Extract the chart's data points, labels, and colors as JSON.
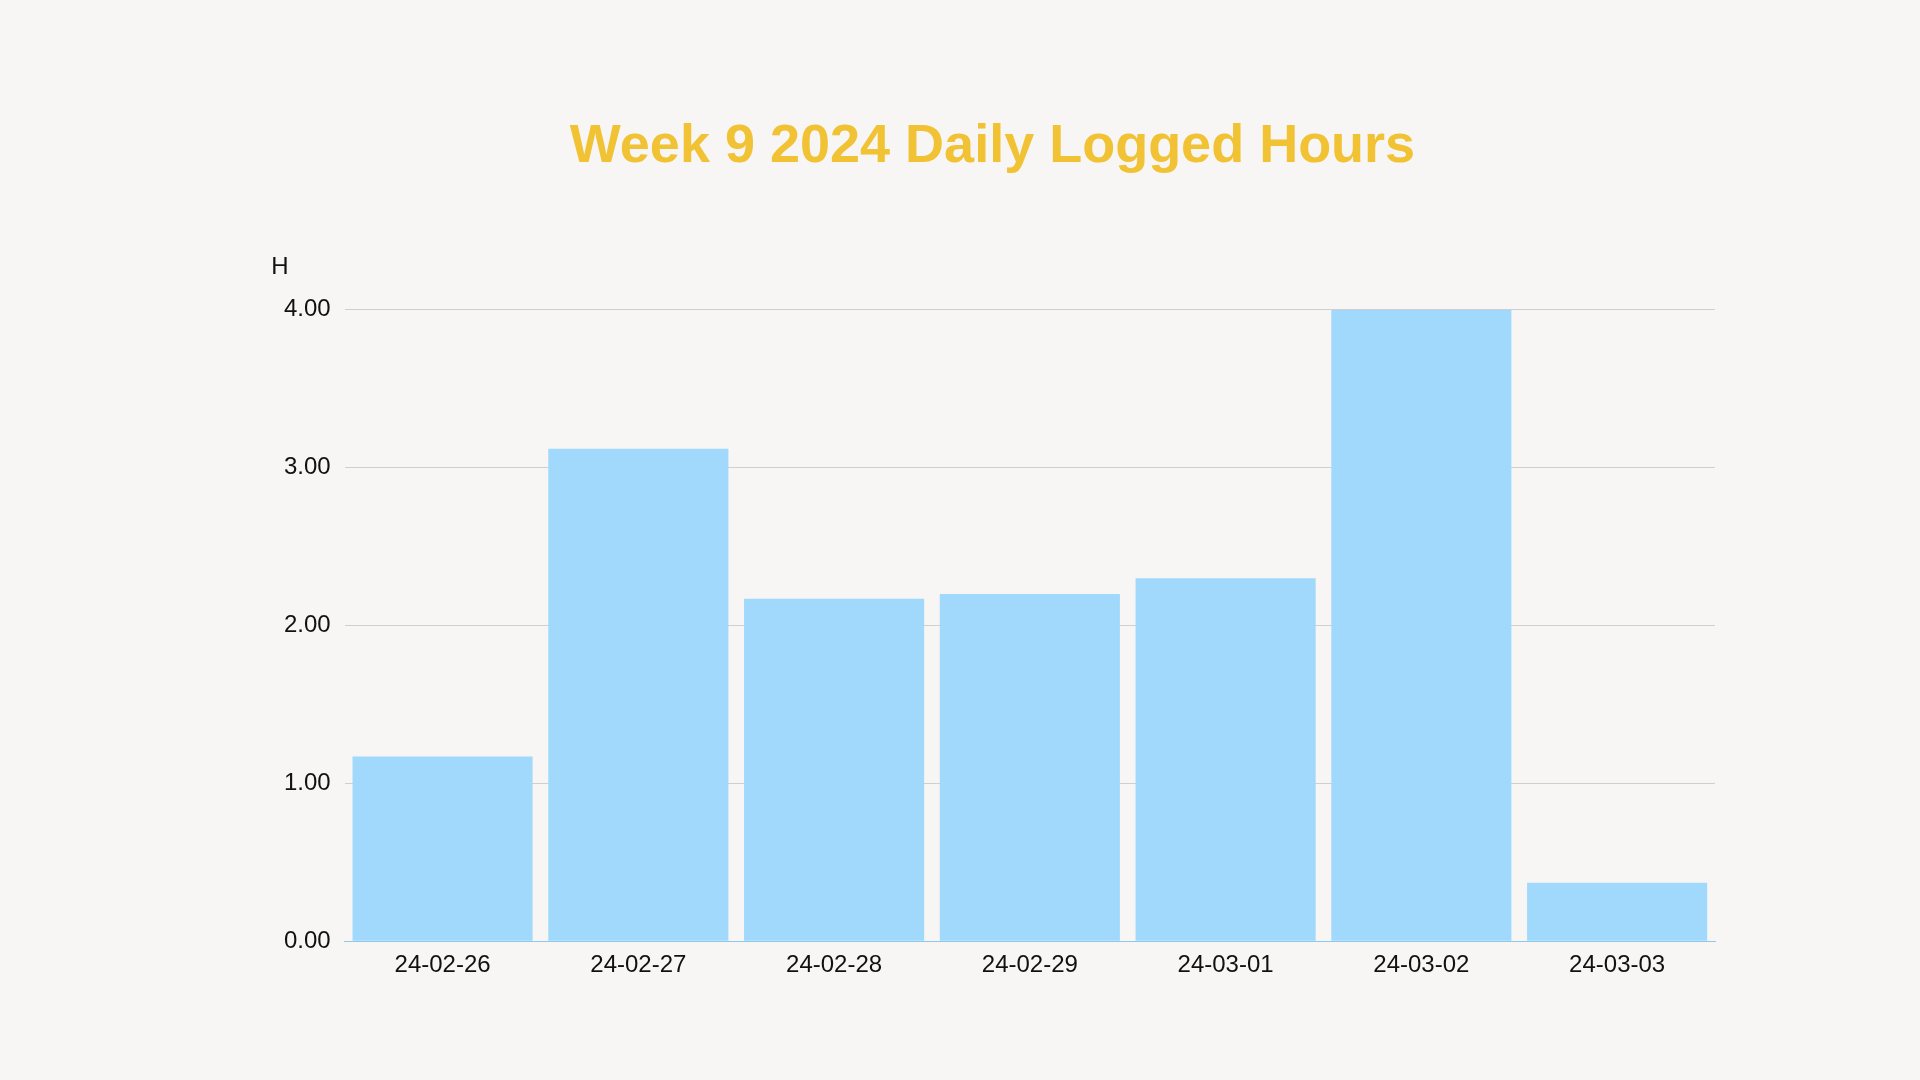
{
  "chart_data": {
    "type": "bar",
    "title": "Week 9 2024 Daily Logged Hours",
    "ylabel": "H",
    "categories": [
      "24-02-26",
      "24-02-27",
      "24-02-28",
      "24-02-29",
      "24-03-01",
      "24-03-02",
      "24-03-03"
    ],
    "values": [
      1.17,
      3.12,
      2.17,
      2.2,
      2.3,
      4,
      0.37
    ],
    "color": "#a0d9fc",
    "ylim": [
      0,
      4
    ],
    "yticks": [
      {
        "value": 0,
        "label": "0.00"
      },
      {
        "value": 1,
        "label": "1.00"
      },
      {
        "value": 2,
        "label": "2.00"
      },
      {
        "value": 3,
        "label": "3.00"
      },
      {
        "value": 4,
        "label": "4.00"
      }
    ],
    "grid": "y",
    "legend": false
  }
}
